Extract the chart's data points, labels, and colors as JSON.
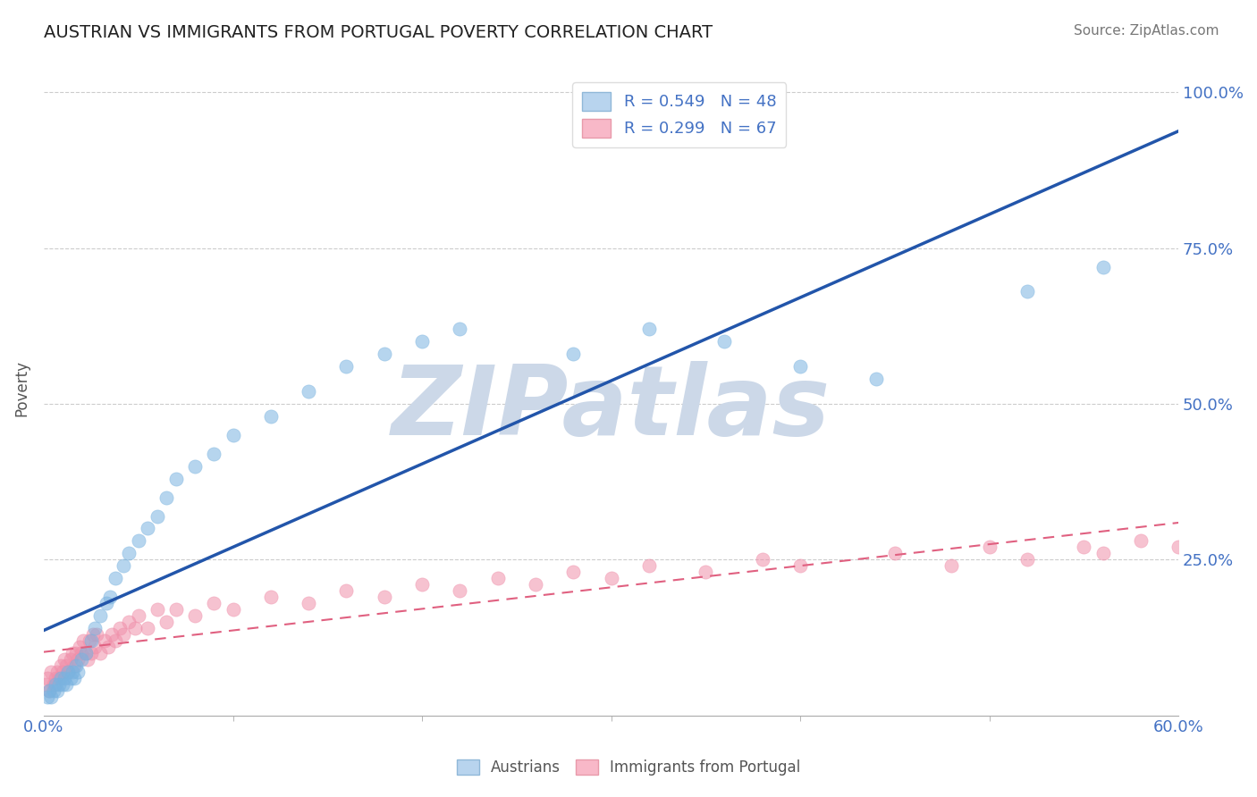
{
  "title": "AUSTRIAN VS IMMIGRANTS FROM PORTUGAL POVERTY CORRELATION CHART",
  "source": "Source: ZipAtlas.com",
  "ylabel": "Poverty",
  "xlim": [
    0.0,
    0.6
  ],
  "ylim": [
    0.0,
    1.05
  ],
  "watermark": "ZIPatlas",
  "watermark_color": "#ccd8e8",
  "background_color": "#ffffff",
  "grid_color": "#cccccc",
  "austrians_color": "#7ab3e0",
  "portugal_color": "#f090aa",
  "regression_blue_color": "#2255aa",
  "regression_pink_color": "#e06080",
  "R_austrians": 0.549,
  "N_austrians": 48,
  "R_portugal": 0.299,
  "N_portugal": 67,
  "austrians_x": [
    0.002,
    0.003,
    0.004,
    0.005,
    0.006,
    0.007,
    0.008,
    0.009,
    0.01,
    0.011,
    0.012,
    0.013,
    0.014,
    0.015,
    0.016,
    0.017,
    0.018,
    0.02,
    0.022,
    0.025,
    0.027,
    0.03,
    0.033,
    0.035,
    0.038,
    0.042,
    0.045,
    0.05,
    0.055,
    0.06,
    0.065,
    0.07,
    0.08,
    0.09,
    0.1,
    0.12,
    0.14,
    0.16,
    0.18,
    0.2,
    0.22,
    0.28,
    0.32,
    0.36,
    0.4,
    0.44,
    0.52,
    0.56
  ],
  "austrians_y": [
    0.03,
    0.04,
    0.03,
    0.04,
    0.05,
    0.04,
    0.05,
    0.06,
    0.05,
    0.06,
    0.05,
    0.07,
    0.06,
    0.07,
    0.06,
    0.08,
    0.07,
    0.09,
    0.1,
    0.12,
    0.14,
    0.16,
    0.18,
    0.19,
    0.22,
    0.24,
    0.26,
    0.28,
    0.3,
    0.32,
    0.35,
    0.38,
    0.4,
    0.42,
    0.45,
    0.48,
    0.52,
    0.56,
    0.58,
    0.6,
    0.62,
    0.58,
    0.62,
    0.6,
    0.56,
    0.54,
    0.68,
    0.72
  ],
  "portugal_x": [
    0.001,
    0.002,
    0.003,
    0.004,
    0.005,
    0.006,
    0.007,
    0.008,
    0.009,
    0.01,
    0.011,
    0.012,
    0.013,
    0.014,
    0.015,
    0.016,
    0.017,
    0.018,
    0.019,
    0.02,
    0.021,
    0.022,
    0.023,
    0.024,
    0.025,
    0.026,
    0.027,
    0.028,
    0.03,
    0.032,
    0.034,
    0.036,
    0.038,
    0.04,
    0.042,
    0.045,
    0.048,
    0.05,
    0.055,
    0.06,
    0.065,
    0.07,
    0.08,
    0.09,
    0.1,
    0.12,
    0.14,
    0.16,
    0.18,
    0.2,
    0.22,
    0.24,
    0.26,
    0.28,
    0.3,
    0.32,
    0.35,
    0.38,
    0.4,
    0.45,
    0.48,
    0.5,
    0.52,
    0.55,
    0.56,
    0.58,
    0.6
  ],
  "portugal_y": [
    0.05,
    0.06,
    0.04,
    0.07,
    0.05,
    0.06,
    0.07,
    0.06,
    0.08,
    0.07,
    0.09,
    0.08,
    0.07,
    0.09,
    0.1,
    0.08,
    0.1,
    0.09,
    0.11,
    0.1,
    0.12,
    0.1,
    0.09,
    0.12,
    0.1,
    0.13,
    0.11,
    0.13,
    0.1,
    0.12,
    0.11,
    0.13,
    0.12,
    0.14,
    0.13,
    0.15,
    0.14,
    0.16,
    0.14,
    0.17,
    0.15,
    0.17,
    0.16,
    0.18,
    0.17,
    0.19,
    0.18,
    0.2,
    0.19,
    0.21,
    0.2,
    0.22,
    0.21,
    0.23,
    0.22,
    0.24,
    0.23,
    0.25,
    0.24,
    0.26,
    0.24,
    0.27,
    0.25,
    0.27,
    0.26,
    0.28,
    0.27
  ]
}
